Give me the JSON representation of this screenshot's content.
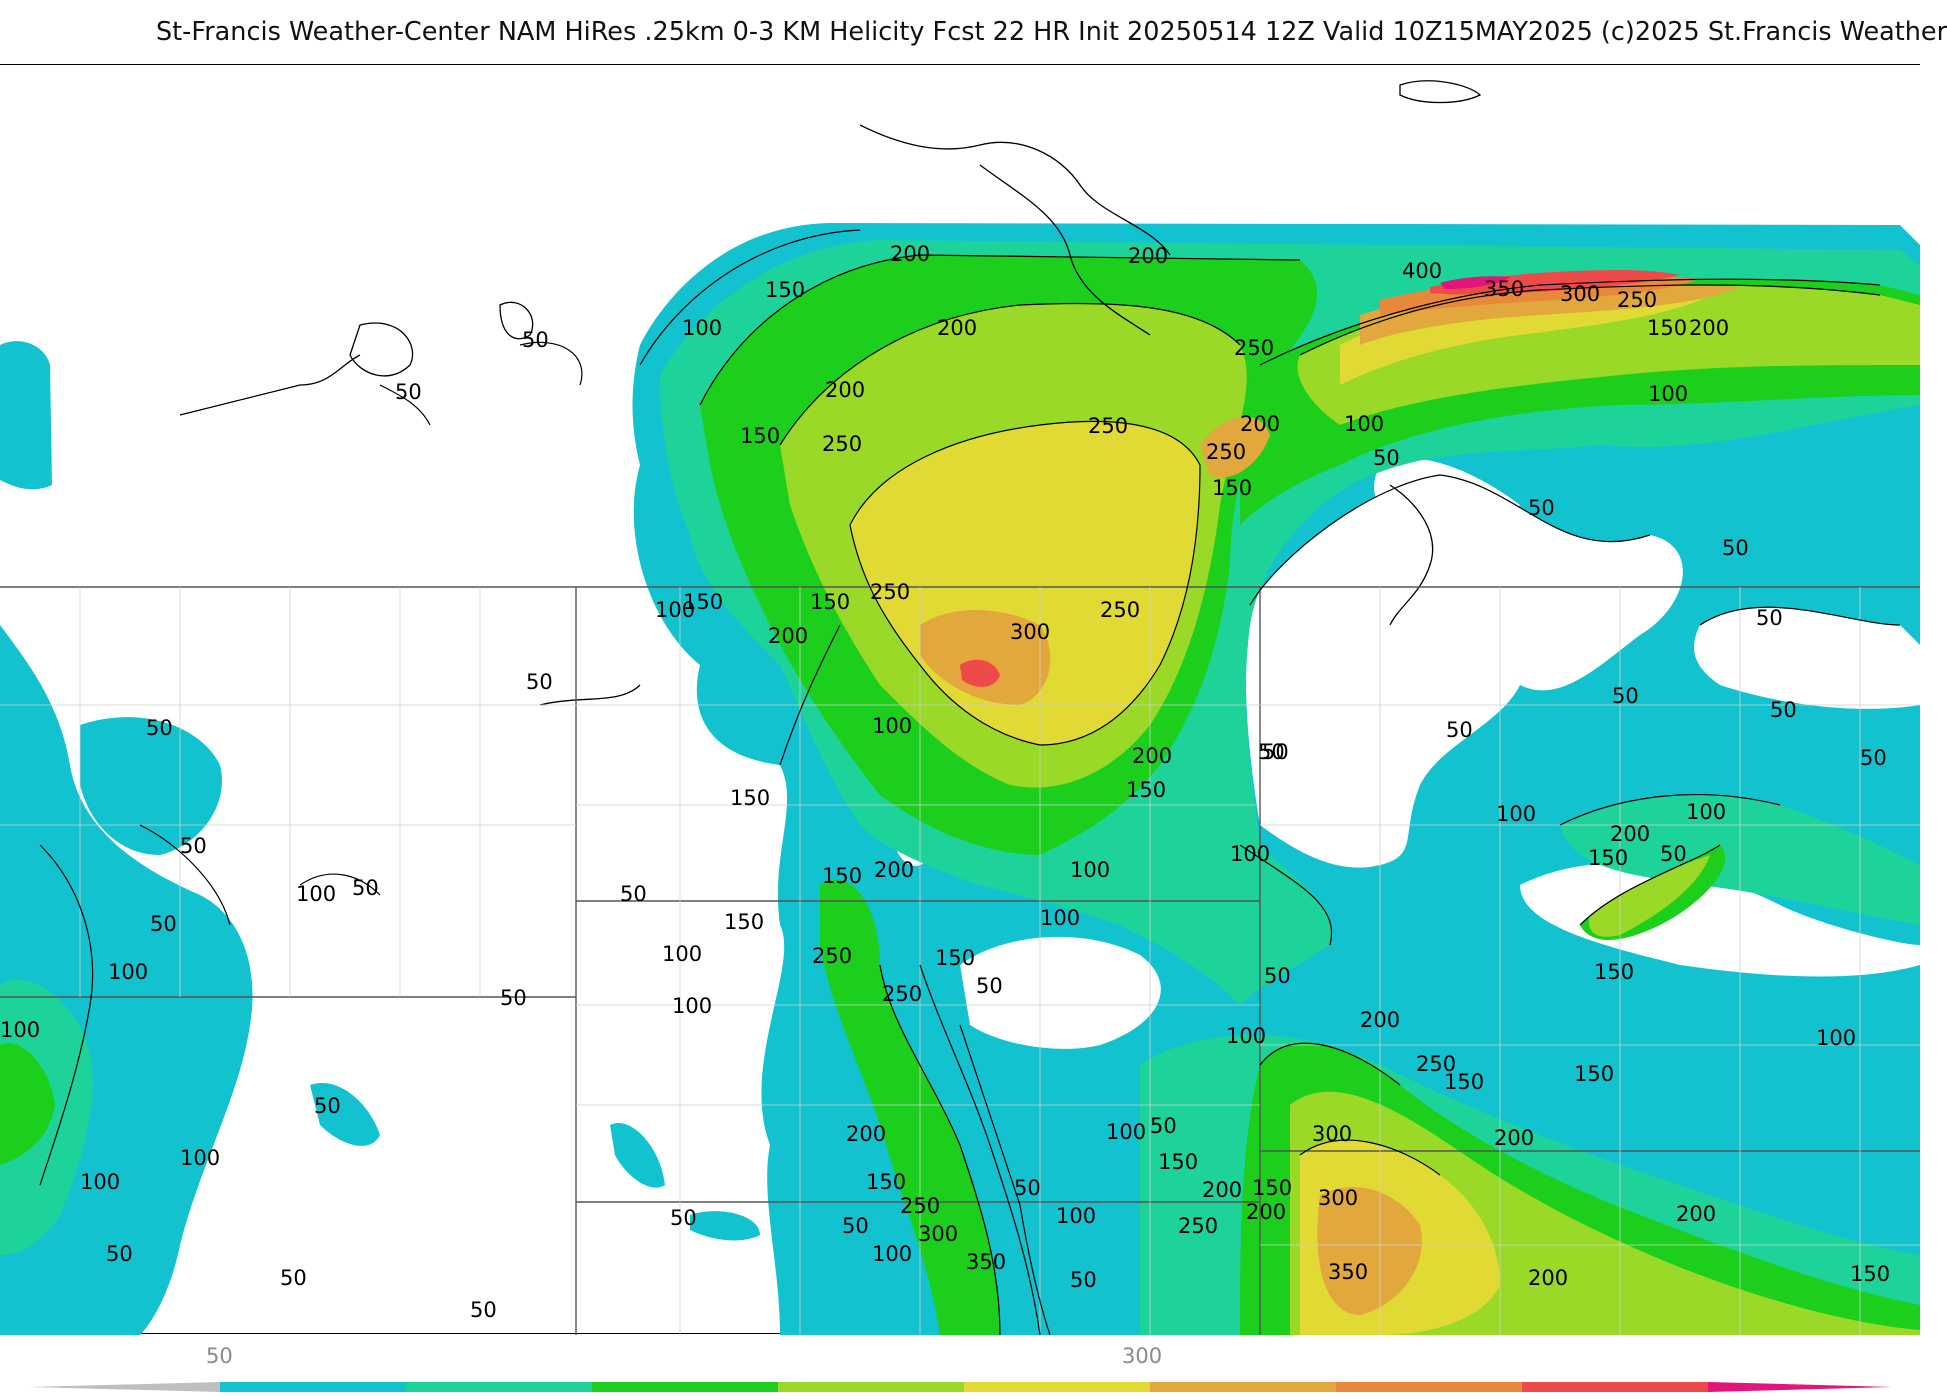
{
  "title": "St-Francis Weather-Center NAM HiRes .25km 0-3 KM Helicity Fcst 22 HR Init 20250514 12Z  Valid 10Z15MAY2025    (c)2025 St.Francis Weather",
  "colors": {
    "c50": "#12c3cf",
    "c100": "#1ed39a",
    "c150": "#1ccf1c",
    "c200": "#9ad928",
    "c250": "#e1da35",
    "c300": "#e3a83d",
    "c350": "#e8883a",
    "c400": "#ef4a4a",
    "c450": "#e2157a",
    "contour": "#000000",
    "border": "#555555",
    "county": "#cfcfcf"
  },
  "contour_labels": [
    "50",
    "100",
    "150",
    "200",
    "250",
    "300",
    "350",
    "400"
  ],
  "legend": {
    "ticks": [
      "50",
      "300"
    ]
  }
}
